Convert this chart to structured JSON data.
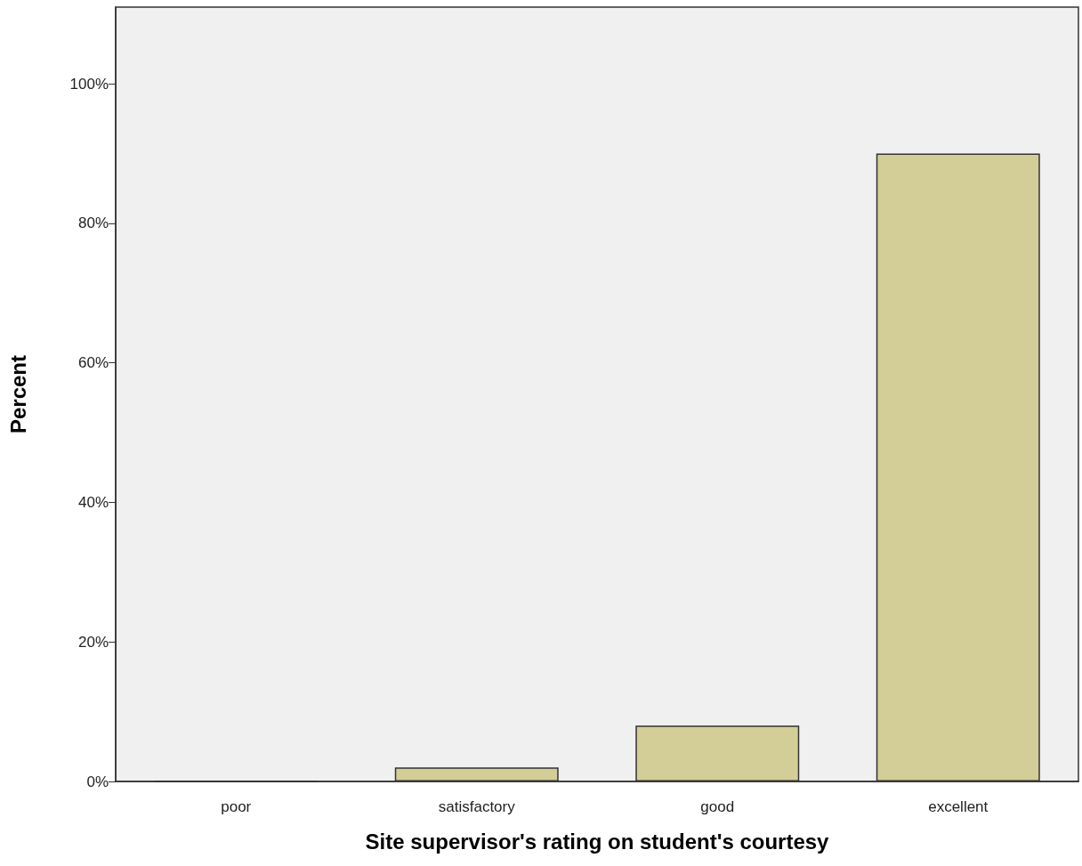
{
  "chart_data": {
    "type": "bar",
    "xlabel": "Site supervisor's rating on student's courtesy",
    "ylabel": "Percent",
    "categories": [
      "poor",
      "satisfactory",
      "good",
      "excellent"
    ],
    "values": [
      0,
      2,
      8,
      90
    ],
    "color": "#d3ce97",
    "ylim": [
      0,
      111
    ],
    "yticks": [
      {
        "value": 0,
        "label": "0%"
      },
      {
        "value": 20,
        "label": "20%"
      },
      {
        "value": 40,
        "label": "40%"
      },
      {
        "value": 60,
        "label": "60%"
      },
      {
        "value": 80,
        "label": "80%"
      },
      {
        "value": 100,
        "label": "100%"
      }
    ],
    "grid": false
  }
}
